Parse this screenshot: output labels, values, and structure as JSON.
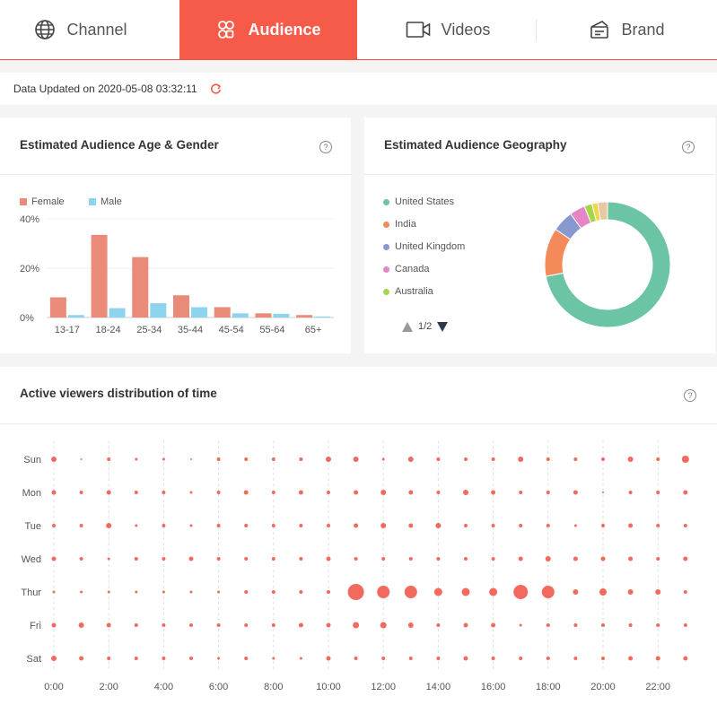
{
  "tabs": [
    {
      "label": "Channel",
      "icon": "globe-icon"
    },
    {
      "label": "Audience",
      "icon": "audience-icon"
    },
    {
      "label": "Videos",
      "icon": "video-camera-icon"
    },
    {
      "label": "Brand",
      "icon": "brand-icon"
    }
  ],
  "updated": {
    "text": "Data Updated on 2020-05-08 03:32:11",
    "icon": "refresh-icon"
  },
  "colors": {
    "accent": "#f65a48",
    "female": "#ea8a78",
    "male": "#8fd4ef",
    "dots": "#f26a5e"
  },
  "age_gender": {
    "title": "Estimated Audience Age & Gender",
    "help": "?",
    "legend": {
      "female": "Female",
      "male": "Male"
    },
    "chart_data": {
      "type": "bar",
      "categories": [
        "13-17",
        "18-24",
        "25-34",
        "35-44",
        "45-54",
        "55-64",
        "65+"
      ],
      "series": [
        {
          "name": "Female",
          "values": [
            8.2,
            33.5,
            24.5,
            9.0,
            4.2,
            1.7,
            1.0
          ]
        },
        {
          "name": "Male",
          "values": [
            1.0,
            3.8,
            5.8,
            4.2,
            1.7,
            1.5,
            0.4
          ]
        }
      ],
      "yticks": [
        "0%",
        "20%",
        "40%"
      ],
      "ylim": [
        0,
        40
      ]
    }
  },
  "geography": {
    "title": "Estimated Audience Geography",
    "help": "?",
    "legend": [
      {
        "name": "United States",
        "color": "#6bc5a5"
      },
      {
        "name": "India",
        "color": "#f48a5a"
      },
      {
        "name": "United Kingdom",
        "color": "#8799d0"
      },
      {
        "name": "Canada",
        "color": "#e585c5"
      },
      {
        "name": "Australia",
        "color": "#a5d44d"
      }
    ],
    "pager": "1/2",
    "chart_data": {
      "type": "pie",
      "slices": [
        {
          "name": "United States",
          "value": 72.0,
          "color": "#6bc5a5"
        },
        {
          "name": "India",
          "value": 12.5,
          "color": "#f48a5a"
        },
        {
          "name": "United Kingdom",
          "value": 5.5,
          "color": "#8799d0"
        },
        {
          "name": "Canada",
          "value": 4.0,
          "color": "#e585c5"
        },
        {
          "name": "Australia",
          "value": 2.0,
          "color": "#a5d44d"
        },
        {
          "name": "",
          "value": 1.5,
          "color": "#f2d64a"
        },
        {
          "name": "",
          "value": 2.5,
          "color": "#e8c8a0"
        }
      ]
    }
  },
  "active": {
    "title": "Active viewers distribution of time",
    "help": "?",
    "chart_data": {
      "type": "scatter",
      "days": [
        "Sun",
        "Mon",
        "Tue",
        "Wed",
        "Thur",
        "Fri",
        "Sat"
      ],
      "hour_labels": [
        "0:00",
        "2:00",
        "4:00",
        "6:00",
        "8:00",
        "10:00",
        "12:00",
        "14:00",
        "16:00",
        "18:00",
        "20:00",
        "22:00"
      ],
      "values": [
        [
          3,
          1,
          2,
          1.5,
          1.5,
          1,
          2,
          2,
          2,
          2,
          3,
          3,
          1.5,
          3,
          2,
          2,
          2,
          3,
          2,
          2,
          2,
          3,
          2,
          4
        ],
        [
          2.5,
          2,
          2.5,
          2,
          2,
          1.5,
          2,
          2.5,
          2,
          2.5,
          2,
          2.5,
          3,
          2.5,
          2,
          3,
          2.5,
          2,
          2,
          2.5,
          1,
          2,
          2,
          2.5
        ],
        [
          2,
          2,
          3,
          1.5,
          2,
          1.5,
          2,
          2,
          2,
          2,
          2,
          2.5,
          3,
          2.5,
          3,
          2,
          2,
          2,
          2,
          1.5,
          2,
          2.5,
          2,
          2
        ],
        [
          2.5,
          2,
          1.5,
          2,
          2,
          2.5,
          2,
          2,
          2,
          2,
          2.5,
          2,
          2,
          2,
          2,
          2,
          2,
          2.5,
          3,
          2.5,
          2.5,
          2.5,
          2,
          2.5
        ],
        [
          1.5,
          1.5,
          1.5,
          1.5,
          1.5,
          1.5,
          1.5,
          2,
          2,
          2,
          2,
          9,
          7,
          7,
          4.5,
          4.5,
          4.5,
          8,
          7,
          3,
          4,
          3,
          3,
          2
        ],
        [
          2.5,
          3,
          2.5,
          2,
          2,
          2,
          2,
          2,
          2,
          2.5,
          2.5,
          3.5,
          3.5,
          3,
          2,
          2.5,
          2.5,
          1.5,
          2,
          2,
          2,
          2,
          2,
          2
        ],
        [
          3,
          2.5,
          2,
          2,
          2,
          2,
          1.5,
          2,
          1.5,
          1.5,
          2.5,
          2,
          2,
          2,
          2,
          2.5,
          2,
          2,
          2,
          2,
          2,
          2.5,
          2.5,
          2.5
        ]
      ]
    }
  }
}
